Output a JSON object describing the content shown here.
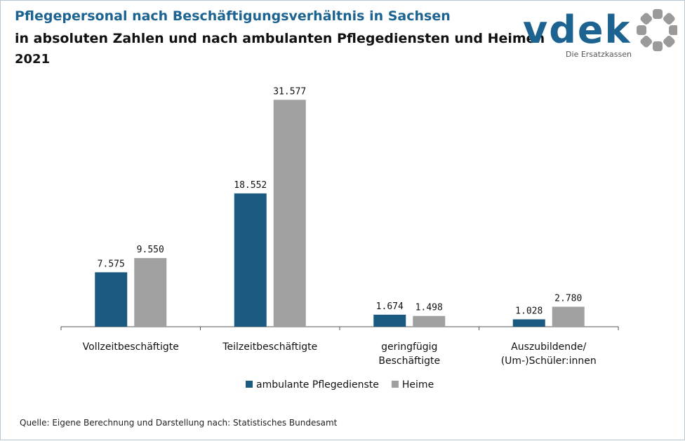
{
  "header": {
    "title": "Pflegepersonal nach Beschäftigungsverhältnis in Sachsen",
    "subtitle": "in absoluten Zahlen und nach ambulanten Pflegediensten und Heimen",
    "year": "2021"
  },
  "logo": {
    "wordmark": "vdek",
    "tagline": "Die Ersatzkassen",
    "color": "#1c6391",
    "ring_color": "#9a9a9a"
  },
  "chart_data": {
    "type": "bar",
    "categories": [
      [
        "Vollzeitbeschäftigte"
      ],
      [
        "Teilzeitbeschäftigte"
      ],
      [
        "geringfügig",
        "Beschäftigte"
      ],
      [
        "Auszubildende/",
        "(Um-)Schüler:innen"
      ]
    ],
    "series": [
      {
        "name": "ambulante Pflegedienste",
        "color": "#1b5a80",
        "values": [
          7575,
          18552,
          1674,
          1028
        ],
        "labels": [
          "7.575",
          "18.552",
          "1.674",
          "1.028"
        ]
      },
      {
        "name": "Heime",
        "color": "#a0a0a0",
        "values": [
          9550,
          31577,
          1498,
          2780
        ],
        "labels": [
          "9.550",
          "31.577",
          "1.498",
          "2.780"
        ]
      }
    ],
    "ylim": [
      0,
      32000
    ],
    "grid": false,
    "legend": "bottom"
  },
  "source": "Quelle: Eigene Berechnung und Darstellung nach: Statistisches Bundesamt"
}
